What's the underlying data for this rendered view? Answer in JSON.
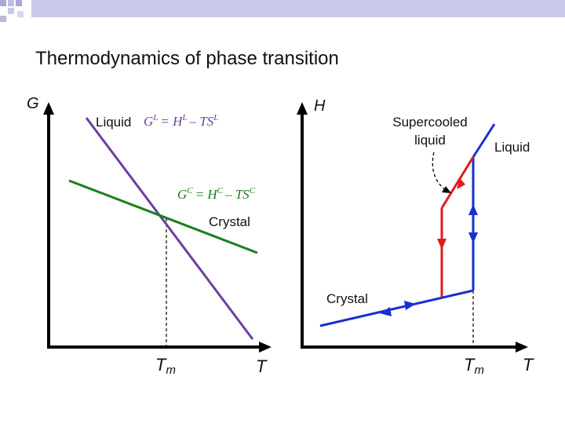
{
  "slide": {
    "title": "Thermodynamics of phase transition"
  },
  "left_plot": {
    "y_axis_label": "G",
    "x_axis_label": "T",
    "tm_label": "T",
    "tm_subscript": "m",
    "liquid_label": "Liquid",
    "liquid_eq": {
      "lhs": "G",
      "lhs_sup": "L",
      "mid": "= H",
      "mid_sup": "L",
      "rhs": "– TS",
      "rhs_sup": "L"
    },
    "crystal_eq": {
      "lhs": "G",
      "lhs_sup": "C",
      "mid": "= H",
      "mid_sup": "C",
      "rhs": "– TS",
      "rhs_sup": "C"
    },
    "crystal_label": "Crystal",
    "colors": {
      "liquid": "#6b3fa0",
      "crystal": "#1a7f1a",
      "axis": "#000000"
    }
  },
  "right_plot": {
    "y_axis_label": "H",
    "x_axis_label": "T",
    "tm_label": "T",
    "tm_subscript": "m",
    "supercooled_line1": "Supercooled",
    "supercooled_line2": "liquid",
    "liquid_label": "Liquid",
    "crystal_label": "Crystal",
    "colors": {
      "heating": "#1a2fd0",
      "cooling": "#e01a1a",
      "axis": "#000000"
    }
  }
}
